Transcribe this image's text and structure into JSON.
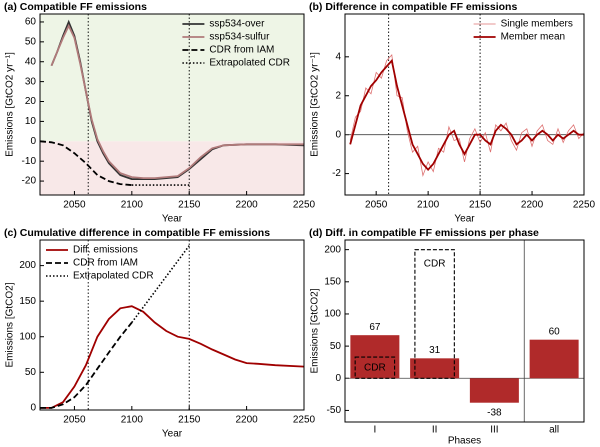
{
  "chart_data": [
    {
      "type": "line",
      "title": "(a) Compatible FF emissions",
      "xlabel": "Year",
      "ylabel": "Emissions [GtCO2 yr⁻¹]",
      "xlim": [
        2020,
        2250
      ],
      "xticks": [
        2050,
        2100,
        2150,
        2200,
        2250
      ],
      "ylim": [
        -27,
        64
      ],
      "yticks": [
        -20,
        -10,
        0,
        10,
        20,
        30,
        40,
        50,
        60
      ],
      "vlines": [
        2062,
        2150
      ],
      "positive_fill": "#eef5e6",
      "negative_fill": "#f8e8e8",
      "legend": "upper right",
      "series": [
        {
          "name": "ssp534-over",
          "color": "#333333",
          "dash": "solid",
          "width": 1.8,
          "x": [
            2030,
            2035,
            2040,
            2045,
            2050,
            2055,
            2060,
            2065,
            2070,
            2075,
            2080,
            2090,
            2100,
            2110,
            2120,
            2130,
            2140,
            2150,
            2160,
            2170,
            2180,
            2200,
            2225,
            2250
          ],
          "values": [
            38,
            45,
            53,
            60,
            53,
            40,
            25,
            10,
            0,
            -6,
            -11,
            -17,
            -19,
            -19,
            -19,
            -18.5,
            -18,
            -14,
            -9,
            -4,
            -2,
            -1.5,
            -1.5,
            -2
          ]
        },
        {
          "name": "ssp534-sulfur",
          "color": "#b07a7a",
          "dash": "solid",
          "width": 1.8,
          "x": [
            2030,
            2035,
            2040,
            2045,
            2050,
            2055,
            2060,
            2065,
            2070,
            2075,
            2080,
            2090,
            2100,
            2110,
            2120,
            2130,
            2140,
            2150,
            2160,
            2170,
            2180,
            2200,
            2225,
            2250
          ],
          "values": [
            38,
            45,
            52,
            58,
            52,
            39,
            25,
            11,
            1,
            -5,
            -10,
            -16,
            -18,
            -18.5,
            -18.5,
            -18,
            -17.5,
            -13.5,
            -8,
            -3.5,
            -2,
            -1.5,
            -1.5,
            -1.5
          ]
        },
        {
          "name": "CDR from IAM",
          "color": "#000000",
          "dash": "dashed",
          "width": 1.8,
          "x": [
            2020,
            2030,
            2040,
            2050,
            2060,
            2070,
            2080,
            2090,
            2100
          ],
          "values": [
            0,
            -0.5,
            -2,
            -6,
            -11,
            -17,
            -20,
            -21.5,
            -22
          ]
        },
        {
          "name": "Extrapolated CDR",
          "color": "#000000",
          "dash": "dotted",
          "width": 1.6,
          "x": [
            2100,
            2150
          ],
          "values": [
            -22,
            -22
          ]
        }
      ]
    },
    {
      "type": "line",
      "title": "(b) Difference in compatible FF emissions",
      "xlabel": "Year",
      "ylabel": "Emissions [GtCO2 yr⁻¹]",
      "xlim": [
        2020,
        2250
      ],
      "xticks": [
        2050,
        2100,
        2150,
        2200,
        2250
      ],
      "ylim": [
        -3.1,
        6.2
      ],
      "yticks": [
        -2,
        0,
        2,
        4
      ],
      "vlines": [
        2062,
        2150
      ],
      "hlines": [
        0
      ],
      "legend": "upper right",
      "x": [
        2025,
        2030,
        2035,
        2040,
        2045,
        2050,
        2055,
        2060,
        2065,
        2070,
        2075,
        2080,
        2085,
        2090,
        2095,
        2100,
        2105,
        2110,
        2115,
        2120,
        2125,
        2130,
        2135,
        2140,
        2145,
        2150,
        2155,
        2160,
        2165,
        2170,
        2175,
        2180,
        2185,
        2190,
        2195,
        2200,
        2205,
        2210,
        2215,
        2220,
        2225,
        2230,
        2235,
        2240,
        2245,
        2250
      ],
      "series": [
        {
          "name": "Single members",
          "color": "#dd7070",
          "dash": "solid",
          "width": 0.8,
          "values": [
            -0.3,
            0.9,
            1.2,
            2.4,
            2.1,
            3.2,
            2.9,
            3.8,
            4.1,
            2.0,
            1.9,
            0.2,
            -0.9,
            -0.6,
            -2.1,
            -1.4,
            -1.9,
            -0.7,
            -0.9,
            0.4,
            -0.3,
            -0.2,
            -1.4,
            -0.2,
            0.3,
            -0.4,
            0.1,
            -0.9,
            0.5,
            0.2,
            0.6,
            -0.3,
            -0.8,
            0.1,
            0.3,
            -0.6,
            0.2,
            0.5,
            -0.3,
            -0.5,
            0.3,
            -0.4,
            0.2,
            0.5,
            -0.2,
            0.1
          ]
        },
        {
          "name": "Member mean",
          "color": "#a00000",
          "dash": "solid",
          "width": 1.8,
          "values": [
            -0.5,
            0.5,
            1.5,
            2,
            2.5,
            2.8,
            3.2,
            3.5,
            3.8,
            2.5,
            1.5,
            0.5,
            -0.5,
            -1,
            -1.5,
            -1.8,
            -1.5,
            -1,
            -0.5,
            0,
            0.2,
            -0.5,
            -1,
            -0.5,
            0,
            0,
            -0.3,
            -0.5,
            0.2,
            0.5,
            0.3,
            0,
            -0.5,
            -0.3,
            0,
            -0.3,
            0,
            0.2,
            0,
            -0.3,
            0,
            -0.2,
            0,
            0.2,
            0,
            0
          ]
        }
      ]
    },
    {
      "type": "line",
      "title": "(c) Cumulative difference in compatible FF emissions",
      "xlabel": "Year",
      "ylabel": "Emissions [GtCO2]",
      "xlim": [
        2020,
        2250
      ],
      "xticks": [
        2050,
        2100,
        2150,
        2200,
        2250
      ],
      "ylim": [
        -3,
        236
      ],
      "yticks": [
        0,
        50,
        100,
        150,
        200
      ],
      "vlines": [
        2062,
        2150
      ],
      "legend": "upper left",
      "series": [
        {
          "name": "Diff. emissions",
          "color": "#a00000",
          "dash": "solid",
          "width": 1.8,
          "x": [
            2020,
            2030,
            2040,
            2050,
            2060,
            2070,
            2080,
            2090,
            2100,
            2110,
            2120,
            2130,
            2140,
            2150,
            2160,
            2170,
            2180,
            2190,
            2200,
            2210,
            2225,
            2250
          ],
          "values": [
            0,
            0,
            8,
            30,
            60,
            100,
            125,
            140,
            143,
            135,
            120,
            108,
            100,
            97,
            90,
            82,
            75,
            68,
            63,
            62,
            60,
            58
          ]
        },
        {
          "name": "CDR from IAM",
          "color": "#000000",
          "dash": "dashed",
          "width": 1.8,
          "x": [
            2020,
            2030,
            2040,
            2050,
            2060,
            2070,
            2080,
            2090,
            2100
          ],
          "values": [
            0,
            0,
            5,
            15,
            32,
            55,
            78,
            100,
            120
          ]
        },
        {
          "name": "Extrapolated CDR",
          "color": "#000000",
          "dash": "dotted",
          "width": 1.6,
          "x": [
            2100,
            2150
          ],
          "values": [
            120,
            228
          ]
        }
      ]
    },
    {
      "type": "bar",
      "title": "(d) Diff. in compatible FF emissions per phase",
      "xlabel": "Phases",
      "ylabel": "Emissions [GtCO2]",
      "ylim": [
        -68,
        215
      ],
      "yticks": [
        -50,
        0,
        50,
        100,
        150,
        200
      ],
      "hlines": [
        0
      ],
      "categories": [
        "I",
        "II",
        "III",
        "all"
      ],
      "values": [
        67,
        31,
        -38,
        60
      ],
      "color": "#b02a2a",
      "boxes": {
        "name": "CDR",
        "color": "#000000",
        "values": [
          33,
          200,
          null,
          null
        ]
      }
    }
  ]
}
